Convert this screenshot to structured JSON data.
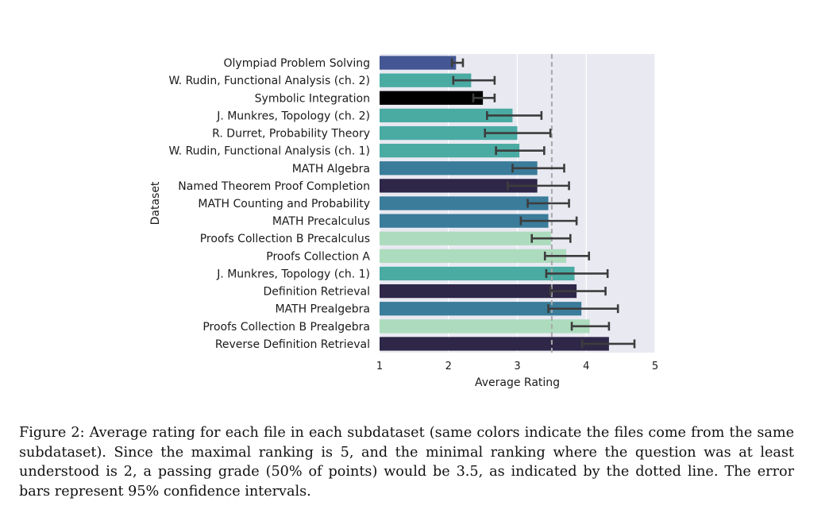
{
  "chart_data": {
    "type": "bar",
    "orientation": "horizontal",
    "xlabel": "Average Rating",
    "ylabel": "Dataset",
    "xlim": [
      1,
      5
    ],
    "xticks": [
      "1",
      "2",
      "3",
      "4",
      "5"
    ],
    "reference_line": {
      "x": 3.5,
      "style": "dashed"
    },
    "grid": true,
    "categories": [
      "Olympiad Problem Solving",
      "W. Rudin, Functional Analysis (ch. 2)",
      "Symbolic Integration",
      "J. Munkres, Topology (ch. 2)",
      "R. Durret, Probability  Theory",
      "W. Rudin, Functional Analysis (ch. 1)",
      "MATH Algebra",
      "Named Theorem Proof Completion",
      "MATH Counting and Probability",
      "MATH Precalculus",
      "Proofs Collection B Precalculus",
      "Proofs Collection A",
      "J. Munkres, Topology (ch. 1)",
      "Definition Retrieval",
      "MATH Prealgebra",
      "Proofs Collection B Prealgebra",
      "Reverse Definition Retrieval"
    ],
    "values": [
      2.11,
      2.33,
      2.5,
      2.93,
      3.0,
      3.03,
      3.29,
      3.29,
      3.45,
      3.45,
      3.49,
      3.71,
      3.83,
      3.86,
      3.93,
      4.05,
      4.33
    ],
    "ci_low": [
      2.05,
      2.07,
      2.36,
      2.56,
      2.53,
      2.69,
      2.93,
      2.86,
      3.15,
      3.05,
      3.21,
      3.4,
      3.42,
      3.48,
      3.45,
      3.79,
      3.94
    ],
    "ci_high": [
      2.21,
      2.67,
      2.67,
      3.35,
      3.48,
      3.39,
      3.68,
      3.75,
      3.75,
      3.86,
      3.77,
      4.04,
      4.31,
      4.28,
      4.46,
      4.33,
      4.7
    ],
    "colors": [
      "#445794",
      "#4aaba3",
      "#000000",
      "#4aaba3",
      "#4aaba3",
      "#4aaba3",
      "#3a7c9a",
      "#2e2748",
      "#3a7c9a",
      "#3a7c9a",
      "#acdcbd",
      "#acdcbd",
      "#4aaba3",
      "#2e2748",
      "#3a7c9a",
      "#acdcbd",
      "#2e2748"
    ]
  },
  "caption": "Figure 2: Average rating for each file in each subdataset (same colors indicate the files come from the same subdataset). Since the maximal ranking is 5, and the minimal ranking where the question was at least understood is 2, a passing grade (50% of points) would be 3.5, as indicated by the dotted line. The error bars represent 95% confidence intervals."
}
